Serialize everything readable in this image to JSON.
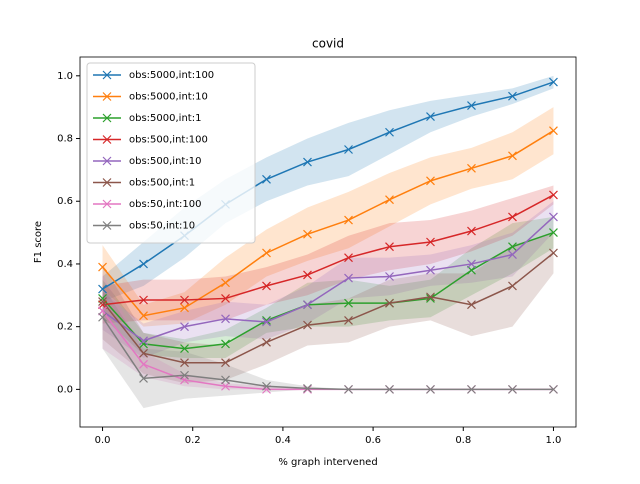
{
  "chart_data": {
    "type": "line",
    "title": "covid",
    "x_label": "% graph intervened",
    "y_label": "F1 score",
    "x": [
      0,
      0.0909,
      0.1818,
      0.2727,
      0.3636,
      0.4545,
      0.5455,
      0.6364,
      0.7273,
      0.8182,
      0.9091,
      1.0
    ],
    "xlim": [
      -0.05,
      1.05
    ],
    "ylim": [
      -0.12,
      1.06
    ],
    "xticks": [
      {
        "value": 0,
        "label": "0.0"
      },
      {
        "value": 0.2,
        "label": "0.2"
      },
      {
        "value": 0.4,
        "label": "0.4"
      },
      {
        "value": 0.6,
        "label": "0.6"
      },
      {
        "value": 0.8,
        "label": "0.8"
      },
      {
        "value": 1,
        "label": "1.0"
      }
    ],
    "yticks": [
      {
        "value": 0,
        "label": "0.0"
      },
      {
        "value": 0.2,
        "label": "0.2"
      },
      {
        "value": 0.4,
        "label": "0.4"
      },
      {
        "value": 0.6,
        "label": "0.6"
      },
      {
        "value": 0.8,
        "label": "0.8"
      },
      {
        "value": 1,
        "label": "1.0"
      }
    ],
    "legend": "upper left",
    "marker": "x",
    "series": [
      {
        "name": "obs:5000,int:100",
        "color": "#1f77b4",
        "values": [
          0.32,
          0.4,
          0.49,
          0.59,
          0.67,
          0.725,
          0.765,
          0.82,
          0.87,
          0.905,
          0.935,
          0.98
        ],
        "lower": [
          0.28,
          0.33,
          0.42,
          0.53,
          0.6,
          0.65,
          0.68,
          0.75,
          0.82,
          0.87,
          0.91,
          0.96
        ],
        "upper": [
          0.36,
          0.47,
          0.58,
          0.67,
          0.74,
          0.8,
          0.85,
          0.89,
          0.92,
          0.94,
          0.96,
          1.0
        ]
      },
      {
        "name": "obs:5000,int:10",
        "color": "#ff7f0e",
        "values": [
          0.39,
          0.235,
          0.26,
          0.34,
          0.435,
          0.495,
          0.54,
          0.605,
          0.665,
          0.705,
          0.745,
          0.825
        ],
        "lower": [
          0.32,
          0.2,
          0.21,
          0.27,
          0.36,
          0.41,
          0.45,
          0.52,
          0.59,
          0.64,
          0.67,
          0.75
        ],
        "upper": [
          0.46,
          0.27,
          0.31,
          0.42,
          0.51,
          0.58,
          0.63,
          0.69,
          0.74,
          0.77,
          0.82,
          0.9
        ]
      },
      {
        "name": "obs:5000,int:1",
        "color": "#2ca02c",
        "values": [
          0.29,
          0.145,
          0.13,
          0.145,
          0.22,
          0.27,
          0.275,
          0.275,
          0.29,
          0.38,
          0.455,
          0.5
        ],
        "lower": [
          0.23,
          0.11,
          0.1,
          0.1,
          0.18,
          0.2,
          0.2,
          0.22,
          0.23,
          0.3,
          0.37,
          0.45
        ],
        "upper": [
          0.35,
          0.18,
          0.16,
          0.19,
          0.26,
          0.34,
          0.35,
          0.33,
          0.35,
          0.45,
          0.53,
          0.55
        ]
      },
      {
        "name": "obs:500,int:100",
        "color": "#d62728",
        "values": [
          0.27,
          0.285,
          0.285,
          0.29,
          0.33,
          0.365,
          0.42,
          0.455,
          0.47,
          0.505,
          0.55,
          0.62
        ],
        "lower": [
          0.21,
          0.22,
          0.22,
          0.22,
          0.27,
          0.3,
          0.35,
          0.38,
          0.4,
          0.44,
          0.49,
          0.59
        ],
        "upper": [
          0.33,
          0.35,
          0.35,
          0.36,
          0.39,
          0.43,
          0.49,
          0.53,
          0.54,
          0.57,
          0.61,
          0.65
        ]
      },
      {
        "name": "obs:500,int:10",
        "color": "#9467bd",
        "values": [
          0.25,
          0.155,
          0.2,
          0.225,
          0.215,
          0.27,
          0.355,
          0.36,
          0.38,
          0.4,
          0.43,
          0.55
        ],
        "lower": [
          0.19,
          0.1,
          0.15,
          0.17,
          0.16,
          0.21,
          0.29,
          0.3,
          0.33,
          0.34,
          0.36,
          0.5
        ],
        "upper": [
          0.31,
          0.21,
          0.25,
          0.28,
          0.27,
          0.33,
          0.42,
          0.42,
          0.43,
          0.46,
          0.5,
          0.6
        ]
      },
      {
        "name": "obs:500,int:1",
        "color": "#8c564b",
        "values": [
          0.28,
          0.115,
          0.085,
          0.085,
          0.15,
          0.205,
          0.22,
          0.275,
          0.295,
          0.27,
          0.33,
          0.435
        ],
        "lower": [
          0.16,
          0.05,
          0.02,
          0.03,
          0.08,
          0.14,
          0.15,
          0.2,
          0.22,
          0.17,
          0.2,
          0.37
        ],
        "upper": [
          0.4,
          0.18,
          0.15,
          0.14,
          0.22,
          0.27,
          0.29,
          0.35,
          0.37,
          0.37,
          0.46,
          0.5
        ]
      },
      {
        "name": "obs:50,int:100",
        "color": "#e377c2",
        "values": [
          0.25,
          0.08,
          0.03,
          0.01,
          0,
          0,
          0,
          0,
          0,
          0,
          0,
          0
        ],
        "lower": [
          0.13,
          0.04,
          0.01,
          0,
          0,
          0,
          0,
          0,
          0,
          0,
          0,
          0
        ],
        "upper": [
          0.37,
          0.12,
          0.05,
          0.02,
          0.01,
          0,
          0,
          0,
          0,
          0,
          0,
          0
        ]
      },
      {
        "name": "obs:50,int:10",
        "color": "#7f7f7f",
        "values": [
          0.23,
          0.035,
          0.045,
          0.03,
          0.01,
          0.003,
          0,
          0,
          0,
          0,
          0,
          0
        ],
        "lower": [
          0.13,
          -0.06,
          -0.03,
          -0.02,
          -0.01,
          0,
          0,
          0,
          0,
          0,
          0,
          0
        ],
        "upper": [
          0.33,
          0.13,
          0.12,
          0.08,
          0.03,
          0.01,
          0,
          0,
          0,
          0,
          0,
          0
        ]
      }
    ]
  }
}
